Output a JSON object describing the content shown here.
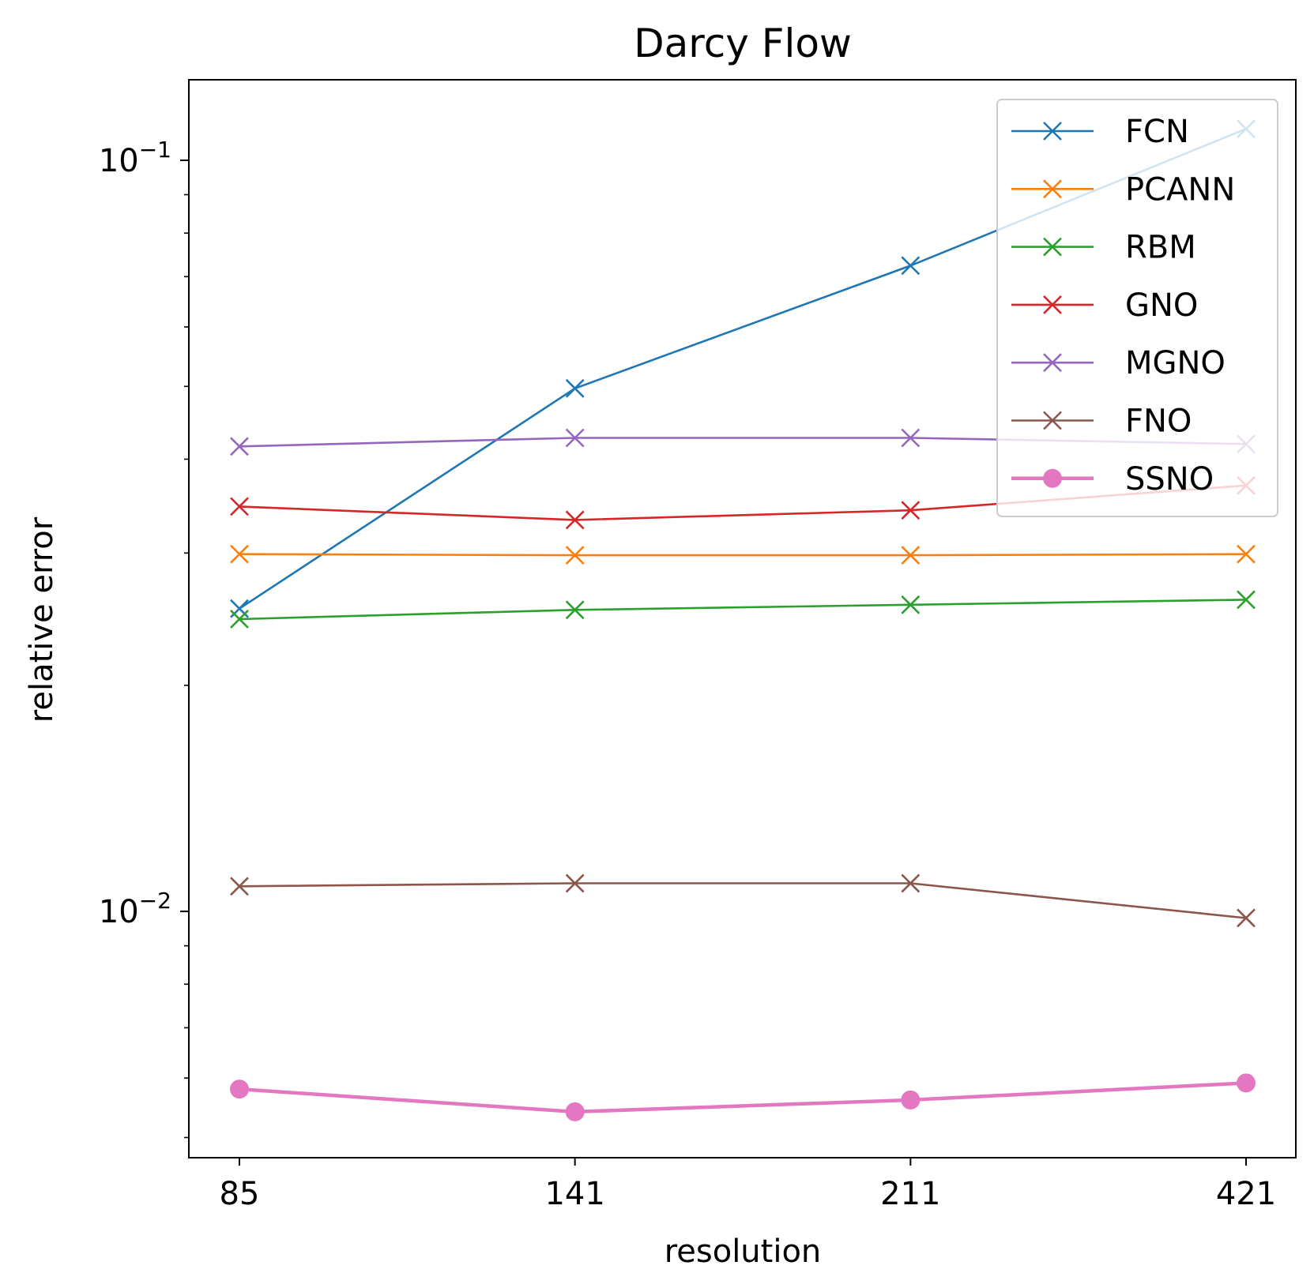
{
  "chart_data": {
    "type": "line",
    "title": "Darcy Flow",
    "xlabel": "resolution",
    "ylabel": "relative error",
    "x_scale": "categorical",
    "y_scale": "log",
    "categories": [
      "85",
      "141",
      "211",
      "421"
    ],
    "ylim": [
      0.0047,
      0.128
    ],
    "y_ticks": [
      {
        "value": 0.1,
        "base": "10",
        "exp": "−1"
      },
      {
        "value": 0.01,
        "base": "10",
        "exp": "−2"
      }
    ],
    "y_minor_ticks": [
      0.005,
      0.006,
      0.007,
      0.008,
      0.009,
      0.02,
      0.03,
      0.04,
      0.05,
      0.06,
      0.07,
      0.08,
      0.09
    ],
    "grid": false,
    "legend_position": "top-right",
    "series": [
      {
        "name": "FCN",
        "color": "#1f77b4",
        "marker": "x",
        "values": [
          0.0253,
          0.0497,
          0.0724,
          0.1101
        ]
      },
      {
        "name": "PCANN",
        "color": "#ff7f0e",
        "marker": "x",
        "values": [
          0.0299,
          0.0298,
          0.0298,
          0.0299
        ]
      },
      {
        "name": "RBM",
        "color": "#2ca02c",
        "marker": "x",
        "values": [
          0.0245,
          0.0252,
          0.0256,
          0.026
        ]
      },
      {
        "name": "GNO",
        "color": "#d62728",
        "marker": "x",
        "values": [
          0.0346,
          0.0332,
          0.0342,
          0.0369
        ]
      },
      {
        "name": "MGNO",
        "color": "#9467bd",
        "marker": "x",
        "values": [
          0.0416,
          0.0427,
          0.0427,
          0.0419
        ]
      },
      {
        "name": "FNO",
        "color": "#8c564b",
        "marker": "x",
        "values": [
          0.0108,
          0.0109,
          0.0109,
          0.0098
        ]
      },
      {
        "name": "SSNO",
        "color": "#e377c2",
        "marker": "circle",
        "values": [
          0.0058,
          0.00541,
          0.00561,
          0.00591
        ]
      }
    ]
  }
}
